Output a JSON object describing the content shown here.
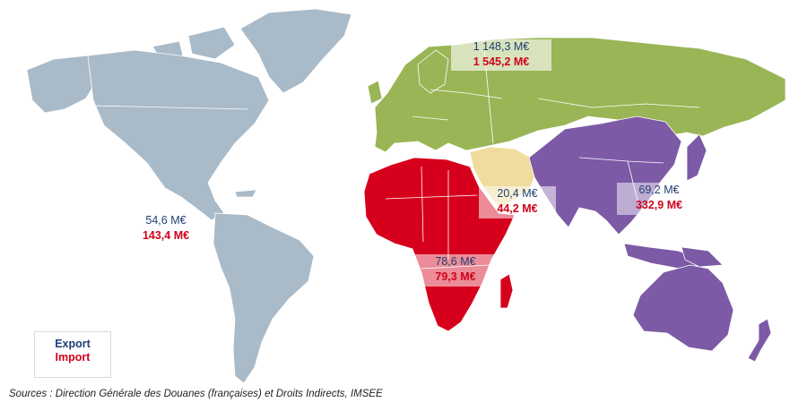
{
  "colors": {
    "americas": "#a9bac8",
    "europe_asia": "#99b555",
    "africa": "#d6001c",
    "middle_east": "#f0dc9e",
    "east_asia_oceania": "#7c5aa6",
    "border": "#ffffff",
    "export_text": "#1f3f73",
    "import_text": "#d0021b"
  },
  "regions": {
    "europe_asia": {
      "export": "1 148,3  M€",
      "import": "1 545,2 M€"
    },
    "americas": {
      "export": "54,6 M€",
      "import": "143,4 M€"
    },
    "middle_east": {
      "export": "20,4 M€",
      "import": "44,2 M€"
    },
    "east_asia_oceania": {
      "export": "69,2 M€",
      "import": "332,9 M€"
    },
    "africa": {
      "export": "78,6  M€",
      "import": "79,3 M€"
    }
  },
  "legend": {
    "export": "Export",
    "import": "Import"
  },
  "source": "Sources : Direction Générale des Douanes (françaises) et Droits Indirects, IMSEE"
}
